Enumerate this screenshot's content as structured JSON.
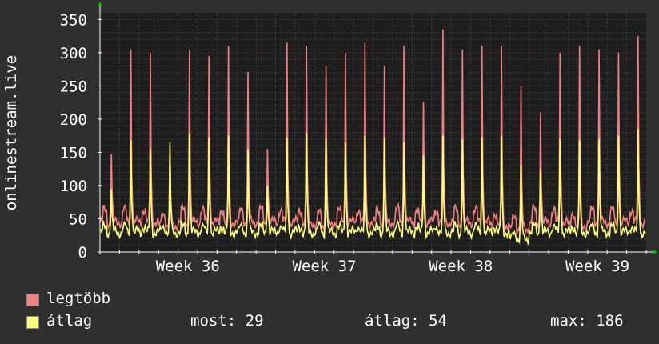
{
  "chart_data": {
    "type": "line",
    "ylabel": "onlinestream.live",
    "ylim": [
      0,
      360
    ],
    "yticks": [
      0,
      50,
      100,
      150,
      200,
      250,
      300,
      350
    ],
    "xlim": [
      0,
      28
    ],
    "xticks": [
      {
        "x": 4.5,
        "label": "Week 36"
      },
      {
        "x": 11.5,
        "label": "Week 37"
      },
      {
        "x": 18.5,
        "label": "Week 38"
      },
      {
        "x": 25.5,
        "label": "Week 39"
      }
    ],
    "grid": true,
    "series": [
      {
        "name": "legtöbb",
        "color": "#f08080",
        "daily_peaks": [
          148,
          305,
          300,
          160,
          305,
          295,
          310,
          271,
          155,
          315,
          310,
          280,
          300,
          315,
          280,
          310,
          225,
          335,
          305,
          310,
          310,
          250,
          210,
          300,
          310,
          305,
          300,
          325
        ],
        "daily_base": [
          45,
          45,
          45,
          40,
          45,
          45,
          45,
          45,
          45,
          45,
          45,
          40,
          45,
          45,
          45,
          45,
          45,
          45,
          45,
          45,
          40,
          35,
          45,
          45,
          40,
          45,
          45,
          45
        ]
      },
      {
        "name": "átlag",
        "color": "#ffff80",
        "daily_peaks": [
          95,
          168,
          155,
          165,
          178,
          172,
          175,
          155,
          100,
          172,
          180,
          170,
          165,
          175,
          172,
          165,
          145,
          175,
          170,
          172,
          175,
          130,
          125,
          170,
          168,
          170,
          175,
          185
        ],
        "daily_base": [
          30,
          30,
          30,
          30,
          30,
          30,
          30,
          30,
          30,
          30,
          30,
          30,
          30,
          30,
          30,
          30,
          30,
          30,
          30,
          30,
          30,
          20,
          30,
          30,
          30,
          30,
          30,
          30
        ]
      }
    ]
  },
  "legend": {
    "max_label": "legtöbb",
    "avg_label": "átlag",
    "now_text": "most: 29",
    "avg_text": "átlag: 54",
    "max_text": "max: 186"
  },
  "colors": {
    "background": "#2f2f2f",
    "plot_background": "#1e1e1e",
    "grid_major": "#8b2e2e",
    "grid_minor": "#4a4a4a",
    "axis_arrow": "#00c000"
  }
}
